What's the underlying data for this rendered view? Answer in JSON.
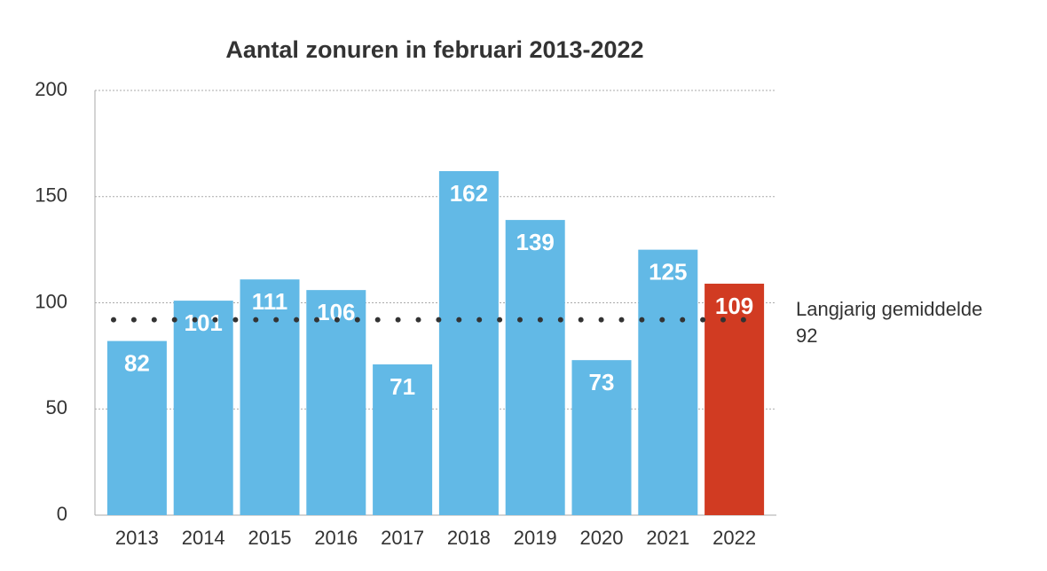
{
  "chart_data": {
    "type": "bar",
    "title": "Aantal zonuren in februari 2013-2022",
    "categories": [
      "2013",
      "2014",
      "2015",
      "2016",
      "2017",
      "2018",
      "2019",
      "2020",
      "2021",
      "2022"
    ],
    "values": [
      82,
      101,
      111,
      106,
      71,
      162,
      139,
      73,
      125,
      109
    ],
    "colors": [
      "#62b9e6",
      "#62b9e6",
      "#62b9e6",
      "#62b9e6",
      "#62b9e6",
      "#62b9e6",
      "#62b9e6",
      "#62b9e6",
      "#62b9e6",
      "#d13b22"
    ],
    "ylim": [
      0,
      200
    ],
    "yticks": [
      0,
      50,
      100,
      150,
      200
    ],
    "grid": true,
    "reference": {
      "value": 92,
      "label": "Langjarig gemiddelde"
    }
  }
}
